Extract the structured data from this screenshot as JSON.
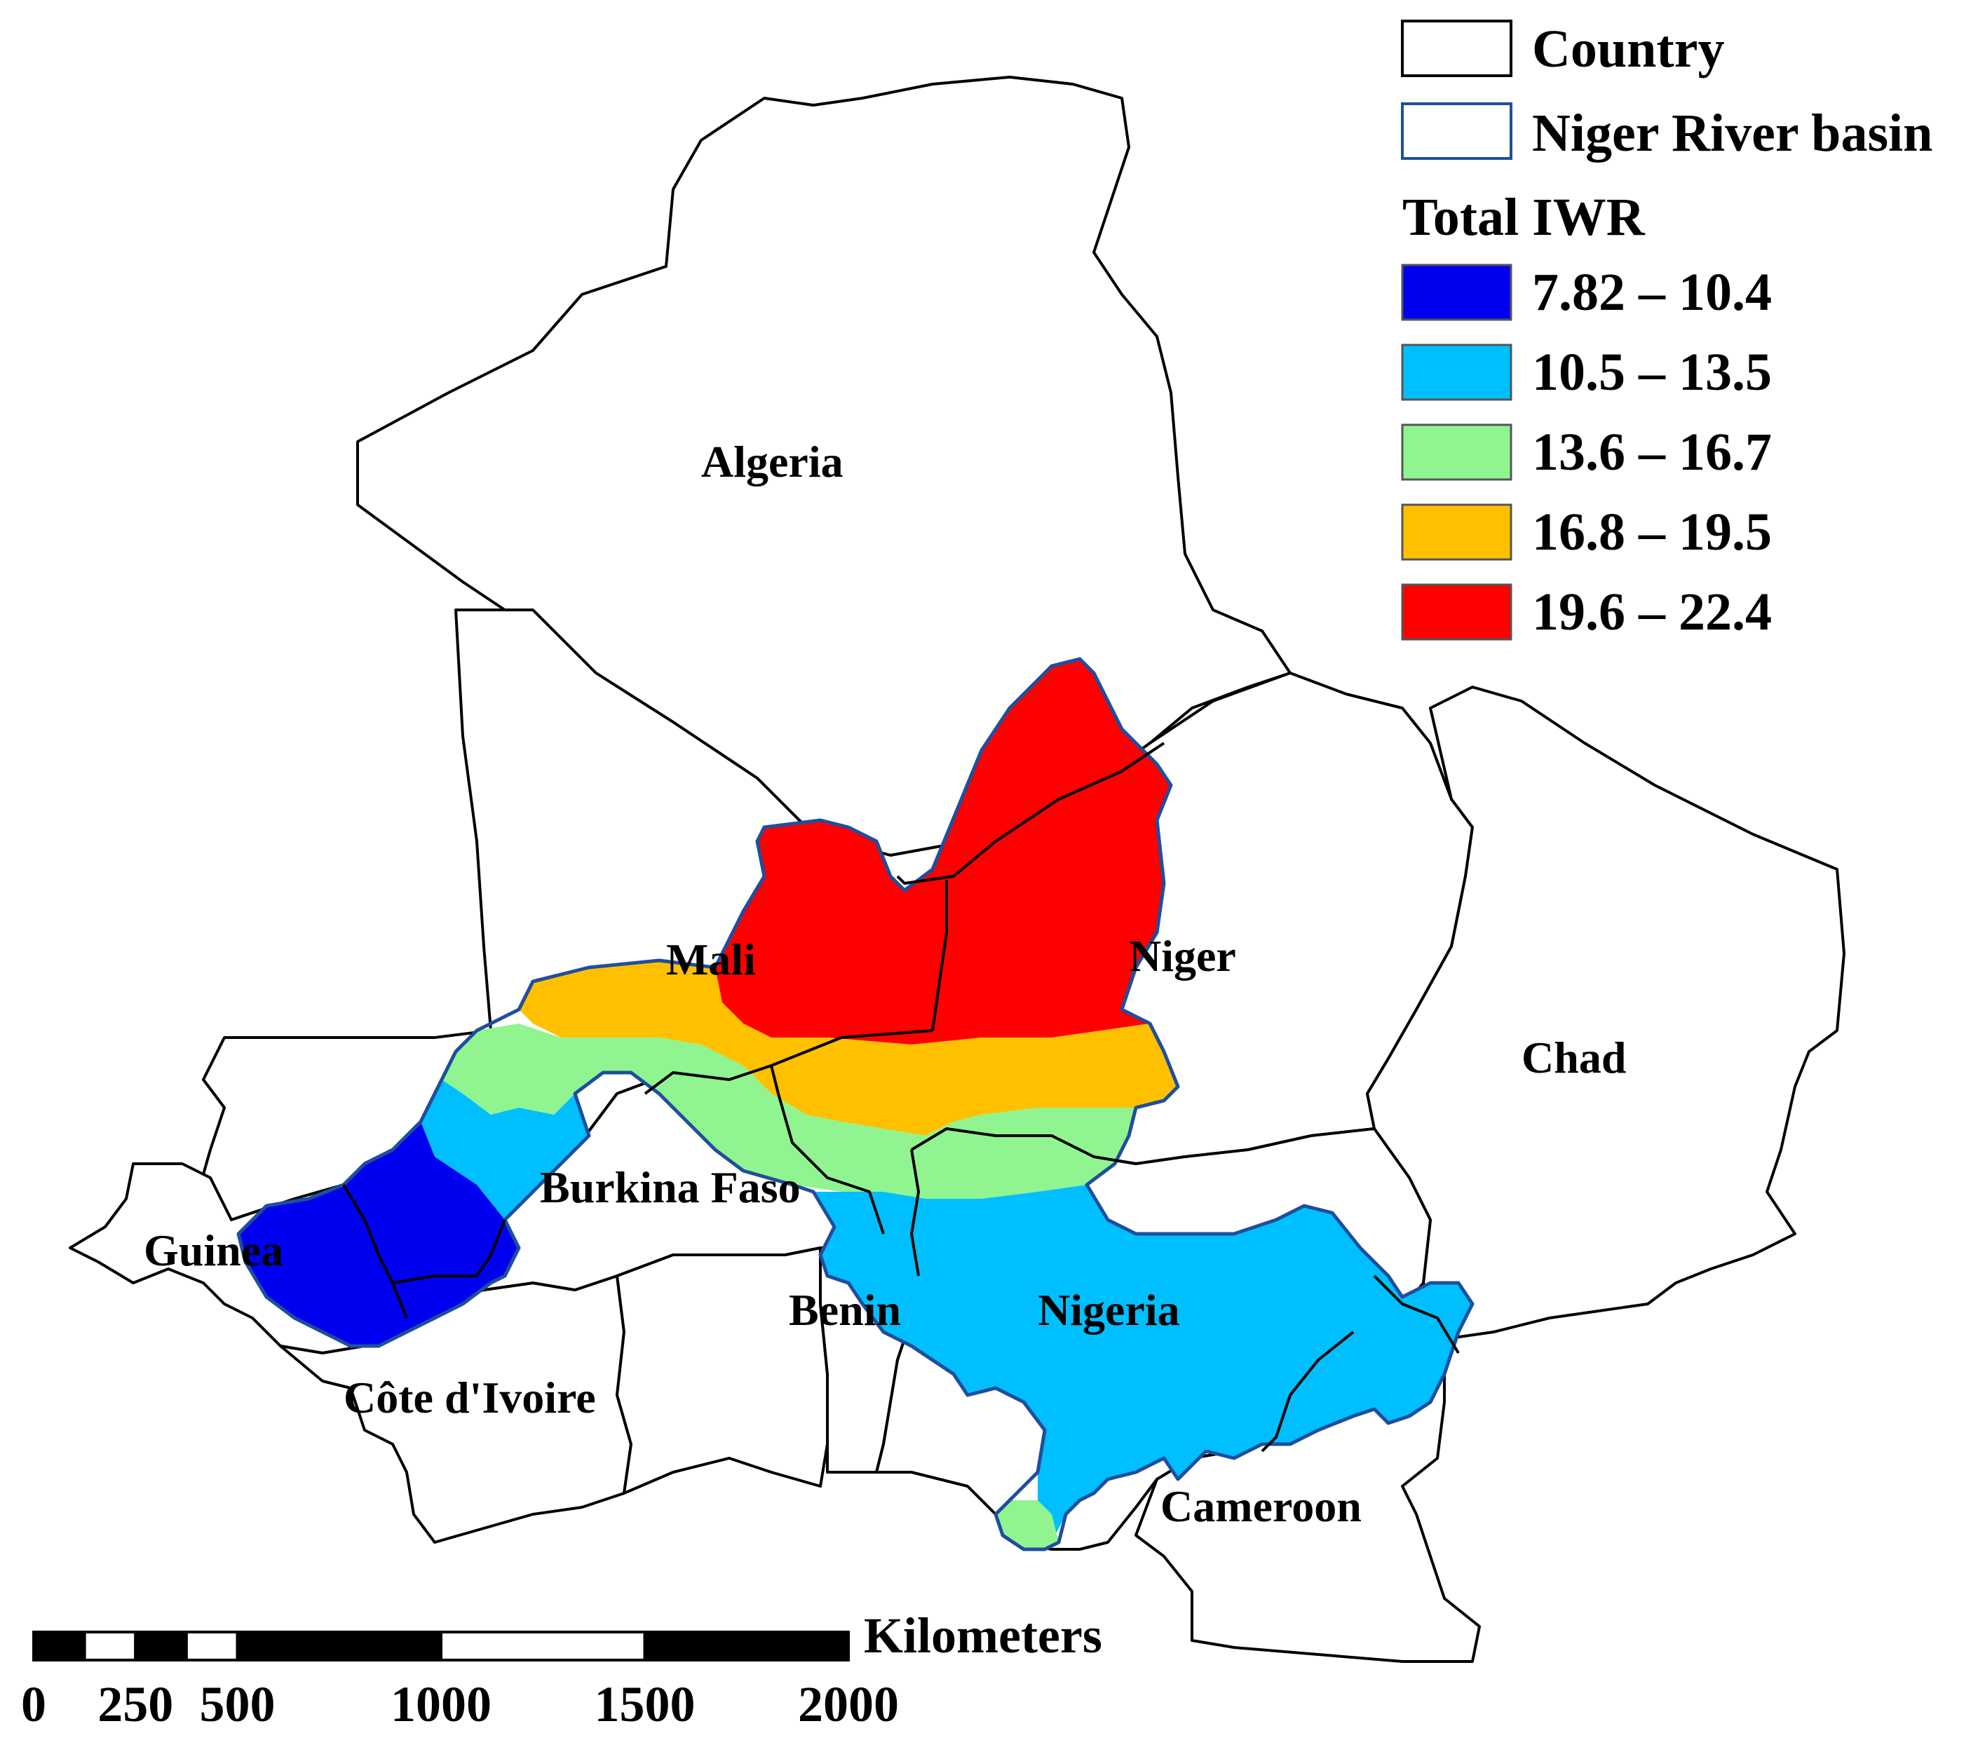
{
  "legend": {
    "country_label": "Country",
    "basin_label": "Niger River basin",
    "title": "Total IWR",
    "country_swatch_stroke": "#000000",
    "basin_swatch_stroke": "#1f4e9c",
    "classes": [
      {
        "label": "7.82 – 10.4",
        "color": "#0000f0"
      },
      {
        "label": "10.5 – 13.5",
        "color": "#00bfff"
      },
      {
        "label": "13.6 – 16.7",
        "color": "#90f590"
      },
      {
        "label": "16.8 – 19.5",
        "color": "#ffc000"
      },
      {
        "label": "19.6 – 22.4",
        "color": "#ff0000"
      }
    ]
  },
  "countries": {
    "algeria": "Algeria",
    "mali": "Mali",
    "niger": "Niger",
    "chad": "Chad",
    "burkina_faso": "Burkina Faso",
    "guinea": "Guinea",
    "benin": "Benin",
    "nigeria": "Nigeria",
    "cote_divoire": "Côte d'Ivoire",
    "cameroon": "Cameroon"
  },
  "scale_bar": {
    "unit": "Kilometers",
    "ticks": [
      "0",
      "250",
      "500",
      "1000",
      "1500",
      "2000"
    ]
  }
}
